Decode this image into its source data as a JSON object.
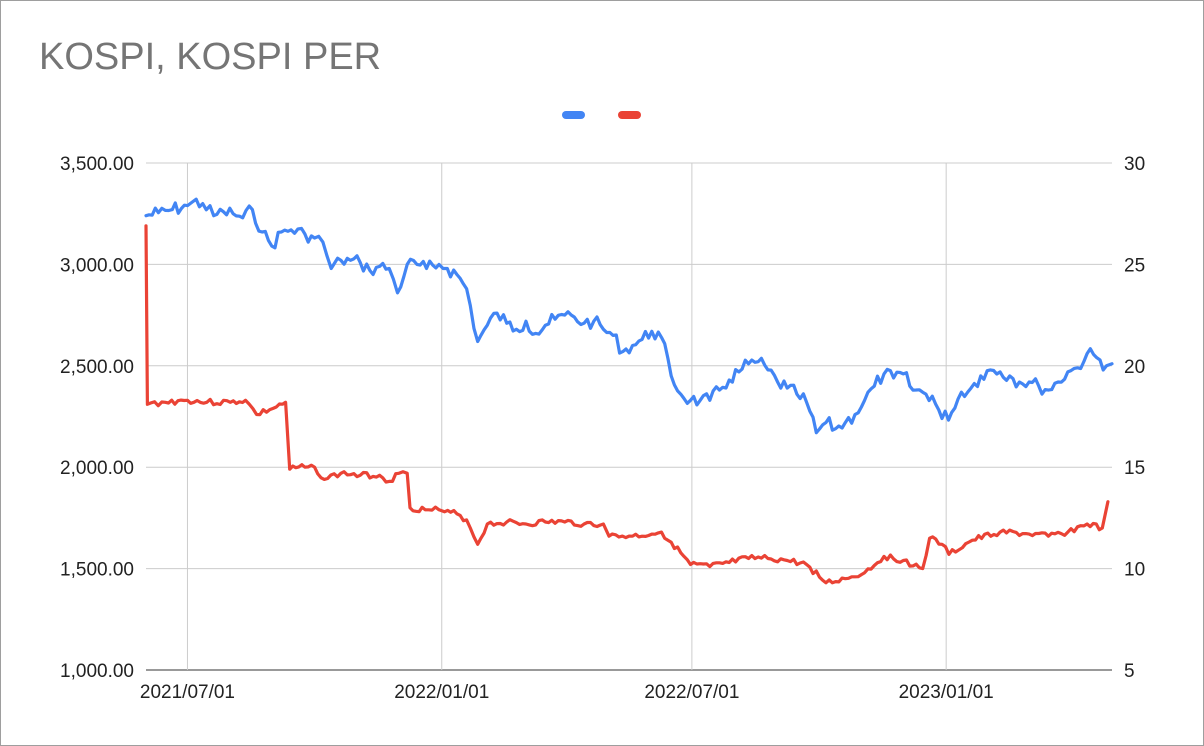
{
  "chart_data": {
    "type": "line",
    "title": "KOSPI, KOSPI PER",
    "grid": true,
    "legend": "top-center",
    "x_tick_labels": [
      "2021/07/01",
      "2022/01/01",
      "2022/07/01",
      "2023/01/01"
    ],
    "x_ticks": [
      "2021-07-01",
      "2022-01-01",
      "2022-07-01",
      "2023-01-01"
    ],
    "xlim": [
      "2021-06-01",
      "2023-05-01"
    ],
    "y_left": {
      "ylim": [
        1000,
        3500
      ],
      "tick_labels": [
        "3,500.00",
        "3,000.00",
        "2,500.00",
        "2,000.00",
        "1,500.00",
        "1,000.00"
      ],
      "ticks": [
        3500,
        3000,
        2500,
        2000,
        1500,
        1000
      ]
    },
    "y_right": {
      "ylim": [
        5,
        30
      ],
      "tick_labels": [
        "30",
        "25",
        "20",
        "15",
        "10",
        "5"
      ],
      "ticks": [
        30,
        25,
        20,
        15,
        10,
        5
      ]
    },
    "series": [
      {
        "axis": "left",
        "color": "#4285f4",
        "points": [
          [
            "2021-06-01",
            3240
          ],
          [
            "2021-06-10",
            3255
          ],
          [
            "2021-06-20",
            3270
          ],
          [
            "2021-07-01",
            3290
          ],
          [
            "2021-07-05",
            3310
          ],
          [
            "2021-07-12",
            3300
          ],
          [
            "2021-07-20",
            3240
          ],
          [
            "2021-07-27",
            3260
          ],
          [
            "2021-08-03",
            3250
          ],
          [
            "2021-08-10",
            3230
          ],
          [
            "2021-08-17",
            3270
          ],
          [
            "2021-08-24",
            3160
          ],
          [
            "2021-08-31",
            3090
          ],
          [
            "2021-09-07",
            3160
          ],
          [
            "2021-09-14",
            3170
          ],
          [
            "2021-09-24",
            3150
          ],
          [
            "2021-10-01",
            3130
          ],
          [
            "2021-10-07",
            3110
          ],
          [
            "2021-10-13",
            2980
          ],
          [
            "2021-10-20",
            3020
          ],
          [
            "2021-10-27",
            3020
          ],
          [
            "2021-11-03",
            3010
          ],
          [
            "2021-11-10",
            2970
          ],
          [
            "2021-11-17",
            2990
          ],
          [
            "2021-11-24",
            2980
          ],
          [
            "2021-11-30",
            2860
          ],
          [
            "2021-12-07",
            3000
          ],
          [
            "2021-12-14",
            3000
          ],
          [
            "2021-12-21",
            2980
          ],
          [
            "2021-12-30",
            3000
          ],
          [
            "2022-01-05",
            2980
          ],
          [
            "2022-01-12",
            2950
          ],
          [
            "2022-01-19",
            2880
          ],
          [
            "2022-01-27",
            2620
          ],
          [
            "2022-02-03",
            2700
          ],
          [
            "2022-02-10",
            2760
          ],
          [
            "2022-02-17",
            2710
          ],
          [
            "2022-02-24",
            2680
          ],
          [
            "2022-03-03",
            2720
          ],
          [
            "2022-03-10",
            2660
          ],
          [
            "2022-03-17",
            2700
          ],
          [
            "2022-03-24",
            2730
          ],
          [
            "2022-03-31",
            2750
          ],
          [
            "2022-04-07",
            2740
          ],
          [
            "2022-04-14",
            2710
          ],
          [
            "2022-04-21",
            2720
          ],
          [
            "2022-04-28",
            2680
          ],
          [
            "2022-05-05",
            2650
          ],
          [
            "2022-05-12",
            2570
          ],
          [
            "2022-05-19",
            2600
          ],
          [
            "2022-05-26",
            2630
          ],
          [
            "2022-06-02",
            2670
          ],
          [
            "2022-06-09",
            2640
          ],
          [
            "2022-06-16",
            2450
          ],
          [
            "2022-06-23",
            2360
          ],
          [
            "2022-06-30",
            2330
          ],
          [
            "2022-07-07",
            2330
          ],
          [
            "2022-07-14",
            2330
          ],
          [
            "2022-07-21",
            2380
          ],
          [
            "2022-07-28",
            2430
          ],
          [
            "2022-08-04",
            2470
          ],
          [
            "2022-08-11",
            2510
          ],
          [
            "2022-08-18",
            2520
          ],
          [
            "2022-08-25",
            2480
          ],
          [
            "2022-09-01",
            2420
          ],
          [
            "2022-09-08",
            2390
          ],
          [
            "2022-09-15",
            2360
          ],
          [
            "2022-09-22",
            2320
          ],
          [
            "2022-09-29",
            2170
          ],
          [
            "2022-10-06",
            2220
          ],
          [
            "2022-10-13",
            2190
          ],
          [
            "2022-10-20",
            2220
          ],
          [
            "2022-10-27",
            2260
          ],
          [
            "2022-11-03",
            2330
          ],
          [
            "2022-11-10",
            2400
          ],
          [
            "2022-11-17",
            2460
          ],
          [
            "2022-11-24",
            2440
          ],
          [
            "2022-12-01",
            2460
          ],
          [
            "2022-12-08",
            2380
          ],
          [
            "2022-12-15",
            2370
          ],
          [
            "2022-12-22",
            2350
          ],
          [
            "2022-12-29",
            2240
          ],
          [
            "2023-01-05",
            2270
          ],
          [
            "2023-01-12",
            2370
          ],
          [
            "2023-01-19",
            2390
          ],
          [
            "2023-01-26",
            2450
          ],
          [
            "2023-02-02",
            2480
          ],
          [
            "2023-02-09",
            2470
          ],
          [
            "2023-02-16",
            2450
          ],
          [
            "2023-02-23",
            2420
          ],
          [
            "2023-03-02",
            2420
          ],
          [
            "2023-03-09",
            2400
          ],
          [
            "2023-03-16",
            2380
          ],
          [
            "2023-03-23",
            2420
          ],
          [
            "2023-03-30",
            2470
          ],
          [
            "2023-04-06",
            2490
          ],
          [
            "2023-04-13",
            2560
          ],
          [
            "2023-04-20",
            2540
          ],
          [
            "2023-04-27",
            2500
          ],
          [
            "2023-05-01",
            2510
          ]
        ]
      },
      {
        "axis": "right",
        "color": "#ea4335",
        "points": [
          [
            "2021-06-01",
            26.9
          ],
          [
            "2021-06-02",
            18.1
          ],
          [
            "2021-06-15",
            18.2
          ],
          [
            "2021-07-01",
            18.3
          ],
          [
            "2021-07-15",
            18.2
          ],
          [
            "2021-08-01",
            18.2
          ],
          [
            "2021-08-12",
            18.3
          ],
          [
            "2021-08-20",
            17.6
          ],
          [
            "2021-09-01",
            17.9
          ],
          [
            "2021-09-10",
            18.2
          ],
          [
            "2021-09-13",
            14.9
          ],
          [
            "2021-09-24",
            15.0
          ],
          [
            "2021-10-01",
            15.0
          ],
          [
            "2021-10-08",
            14.4
          ],
          [
            "2021-10-20",
            14.7
          ],
          [
            "2021-11-03",
            14.6
          ],
          [
            "2021-11-17",
            14.6
          ],
          [
            "2021-11-24",
            14.3
          ],
          [
            "2021-12-01",
            14.7
          ],
          [
            "2021-12-07",
            14.7
          ],
          [
            "2021-12-09",
            13.0
          ],
          [
            "2021-12-20",
            12.9
          ],
          [
            "2021-12-30",
            12.9
          ],
          [
            "2022-01-03",
            12.8
          ],
          [
            "2022-01-12",
            12.7
          ],
          [
            "2022-01-19",
            12.4
          ],
          [
            "2022-01-27",
            11.2
          ],
          [
            "2022-02-03",
            12.2
          ],
          [
            "2022-02-17",
            12.3
          ],
          [
            "2022-03-03",
            12.2
          ],
          [
            "2022-03-17",
            12.3
          ],
          [
            "2022-03-31",
            12.3
          ],
          [
            "2022-04-14",
            12.2
          ],
          [
            "2022-04-28",
            12.2
          ],
          [
            "2022-05-02",
            11.6
          ],
          [
            "2022-05-19",
            11.6
          ],
          [
            "2022-06-02",
            11.7
          ],
          [
            "2022-06-09",
            11.8
          ],
          [
            "2022-06-16",
            11.3
          ],
          [
            "2022-06-30",
            10.2
          ],
          [
            "2022-07-14",
            10.1
          ],
          [
            "2022-07-28",
            10.3
          ],
          [
            "2022-08-11",
            10.5
          ],
          [
            "2022-08-25",
            10.5
          ],
          [
            "2022-09-08",
            10.4
          ],
          [
            "2022-09-22",
            10.2
          ],
          [
            "2022-10-06",
            9.3
          ],
          [
            "2022-10-20",
            9.5
          ],
          [
            "2022-11-03",
            9.8
          ],
          [
            "2022-11-17",
            10.6
          ],
          [
            "2022-12-01",
            10.4
          ],
          [
            "2022-12-15",
            10.0
          ],
          [
            "2022-12-20",
            11.5
          ],
          [
            "2022-12-29",
            11.2
          ],
          [
            "2023-01-03",
            10.7
          ],
          [
            "2023-01-20",
            11.4
          ],
          [
            "2023-02-09",
            11.8
          ],
          [
            "2023-03-02",
            11.7
          ],
          [
            "2023-03-16",
            11.6
          ],
          [
            "2023-03-30",
            11.8
          ],
          [
            "2023-04-13",
            12.2
          ],
          [
            "2023-04-24",
            12.0
          ],
          [
            "2023-04-28",
            13.3
          ]
        ]
      }
    ]
  }
}
